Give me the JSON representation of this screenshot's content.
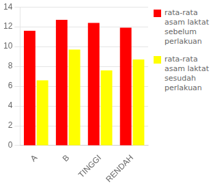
{
  "chart_data": {
    "type": "bar",
    "categories": [
      "A",
      "B",
      "TINGGI",
      "RENDAH"
    ],
    "series": [
      {
        "name": "rata-rata\nasam laktat\nsebelum\nperlakuan",
        "color": "#FF0000",
        "values": [
          11.6,
          12.7,
          12.4,
          11.9
        ]
      },
      {
        "name": "rata-rata\nasam laktat\nsesudah\nperlakuan",
        "color": "#FFFF00",
        "values": [
          6.6,
          9.7,
          7.6,
          8.7
        ]
      }
    ],
    "ylim": [
      0,
      14
    ],
    "yticks": [
      0,
      2,
      4,
      6,
      8,
      10,
      12,
      14
    ],
    "grid": true,
    "legend": "right"
  }
}
